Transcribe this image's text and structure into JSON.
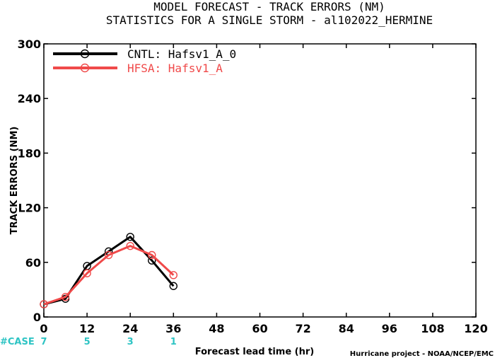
{
  "chart_data": {
    "type": "line",
    "title": "MODEL FORECAST - TRACK ERRORS (NM)",
    "subtitle": "STATISTICS FOR A SINGLE STORM - al102022_HERMINE",
    "xlabel": "Forecast lead time (hr)",
    "ylabel": "TRACK ERRORS (NM)",
    "xlim": [
      0,
      120
    ],
    "ylim": [
      0,
      300
    ],
    "xticks": [
      0,
      12,
      24,
      36,
      48,
      60,
      72,
      84,
      96,
      108,
      120
    ],
    "yticks": [
      0,
      60,
      120,
      180,
      240,
      300
    ],
    "ytick_labels": [
      "0",
      "60",
      "L20",
      "180",
      "240",
      "300"
    ],
    "grid": false,
    "legend_position": "top-left",
    "series": [
      {
        "name": "CNTL: Hafsv1_A_0",
        "color": "#000000",
        "marker": "open-circle",
        "x": [
          0,
          6,
          12,
          18,
          24,
          30,
          36
        ],
        "y": [
          14,
          20,
          56,
          72,
          88,
          62,
          34
        ]
      },
      {
        "name": "HFSA: Hafsv1_A",
        "color": "#f04a4a",
        "marker": "open-circle",
        "x": [
          0,
          6,
          12,
          18,
          24,
          30,
          36
        ],
        "y": [
          14,
          22,
          48,
          68,
          78,
          68,
          46
        ]
      }
    ],
    "case_label": "#CASE",
    "case_counts": [
      {
        "x": 0,
        "label": "7"
      },
      {
        "x": 12,
        "label": "5"
      },
      {
        "x": 24,
        "label": "3"
      },
      {
        "x": 36,
        "label": "1"
      }
    ],
    "case_color": "#2ec4c4",
    "footer": "Hurricane project - NOAA/NCEP/EMC"
  }
}
